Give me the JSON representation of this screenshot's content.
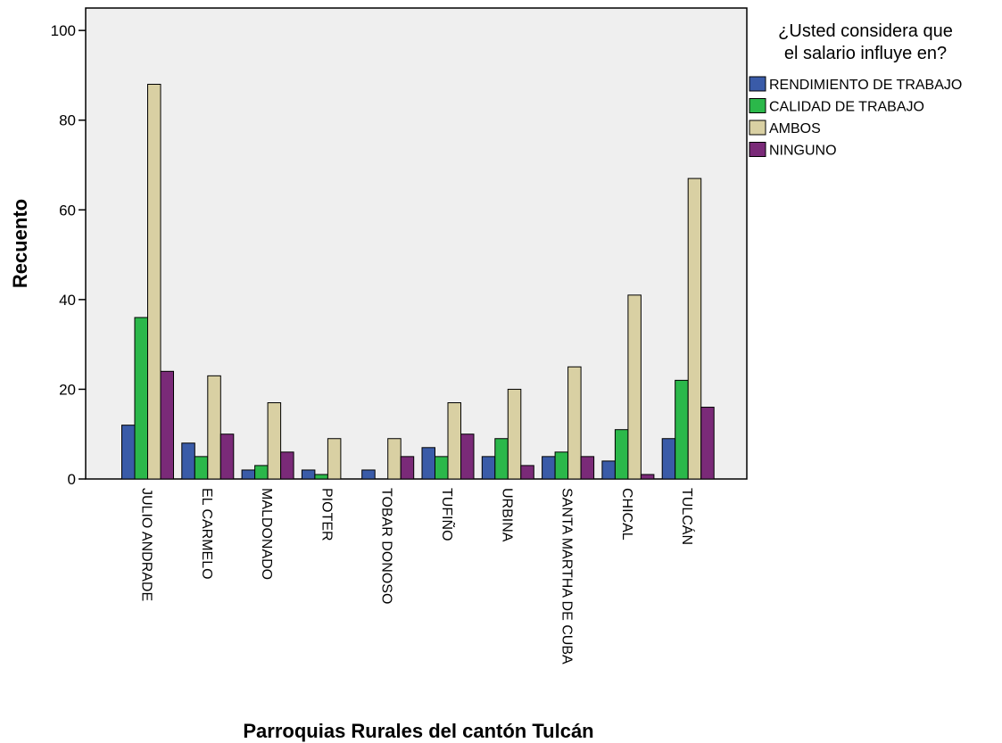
{
  "chart_data": {
    "type": "bar",
    "xlabel": "Parroquias Rurales del cantón Tulcán",
    "ylabel": "Recuento",
    "ylim": [
      0,
      105
    ],
    "yticks": [
      0,
      20,
      40,
      60,
      80,
      100
    ],
    "grid": false,
    "legend": {
      "title": "¿Usted considera que el salario influye en?",
      "title_lines": [
        "¿Usted considera que",
        "el salario influye en?"
      ],
      "placement": "right"
    },
    "categories": [
      "JULIO ANDRADE",
      "EL CARMELO",
      "MALDONADO",
      "PIOTER",
      "TOBAR DONOSO",
      "TUFIÑO",
      "URBINA",
      "SANTA MARTHA DE CUBA",
      "CHICAL",
      "TULCÁN"
    ],
    "series": [
      {
        "name": "RENDIMIENTO DE TRABAJO",
        "color": "#3a5ba8",
        "values": [
          12,
          8,
          2,
          2,
          2,
          7,
          5,
          5,
          4,
          9
        ]
      },
      {
        "name": "CALIDAD DE TRABAJO",
        "color": "#2bb84a",
        "values": [
          36,
          5,
          3,
          1,
          0,
          5,
          9,
          6,
          11,
          22
        ]
      },
      {
        "name": "AMBOS",
        "color": "#d9d0a3",
        "values": [
          88,
          23,
          17,
          9,
          9,
          17,
          20,
          25,
          41,
          67
        ]
      },
      {
        "name": "NINGUNO",
        "color": "#7a2a78",
        "values": [
          24,
          10,
          6,
          0,
          5,
          10,
          3,
          5,
          1,
          16
        ]
      }
    ],
    "plot_background": "#efefef"
  }
}
